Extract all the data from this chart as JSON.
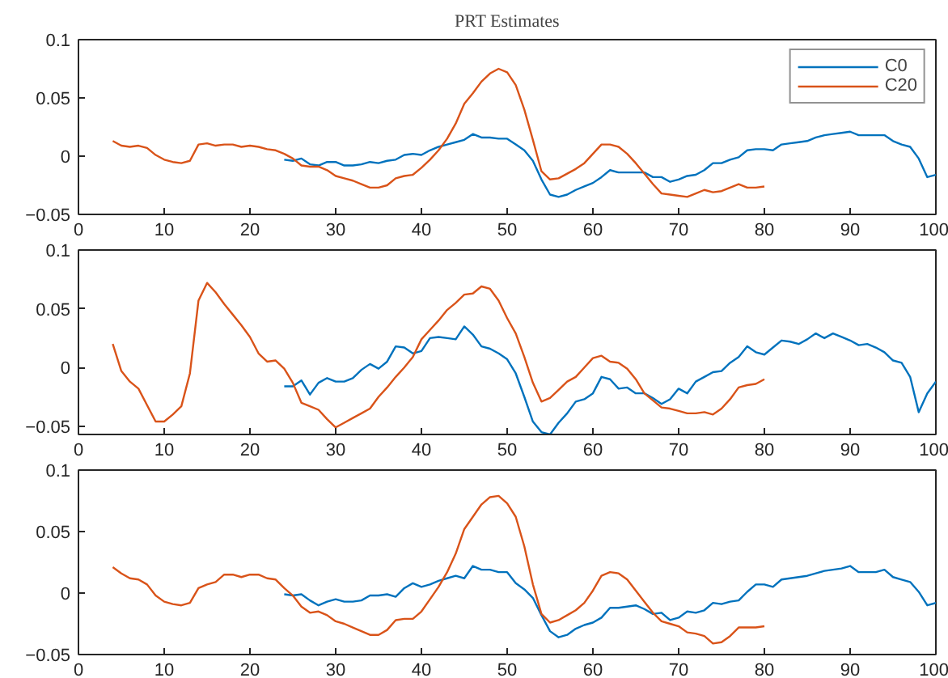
{
  "chart_data": [
    {
      "type": "line",
      "title": "PRT Estimates",
      "xlim": [
        0,
        100
      ],
      "xticks": [
        0,
        10,
        20,
        30,
        40,
        50,
        60,
        70,
        80,
        90,
        100
      ],
      "ylim": [
        -0.05,
        0.1
      ],
      "yticks": [
        -0.05,
        0,
        0.05,
        0.1
      ],
      "grid": false,
      "legend": "top right",
      "series": [
        {
          "name": "C0",
          "color": "#0072bd",
          "x": [
            24,
            25,
            26,
            27,
            28,
            29,
            30,
            31,
            32,
            33,
            34,
            35,
            36,
            37,
            38,
            39,
            40,
            41,
            42,
            43,
            44,
            45,
            46,
            47,
            48,
            49,
            50,
            51,
            52,
            53,
            54,
            55,
            56,
            57,
            58,
            59,
            60,
            61,
            62,
            63,
            64,
            65,
            66,
            67,
            68,
            69,
            70,
            71,
            72,
            73,
            74,
            75,
            76,
            77,
            78,
            79,
            80,
            81,
            82,
            83,
            84,
            85,
            86,
            87,
            88,
            89,
            90,
            91,
            92,
            93,
            94,
            95,
            96,
            97,
            98,
            99,
            100
          ],
          "values": [
            -0.003,
            -0.004,
            -0.002,
            -0.007,
            -0.008,
            -0.005,
            -0.005,
            -0.008,
            -0.008,
            -0.007,
            -0.005,
            -0.006,
            -0.004,
            -0.003,
            0.001,
            0.002,
            0.001,
            0.005,
            0.008,
            0.01,
            0.012,
            0.014,
            0.019,
            0.016,
            0.016,
            0.015,
            0.015,
            0.01,
            0.005,
            -0.004,
            -0.02,
            -0.033,
            -0.035,
            -0.033,
            -0.029,
            -0.026,
            -0.023,
            -0.018,
            -0.012,
            -0.014,
            -0.014,
            -0.014,
            -0.014,
            -0.018,
            -0.018,
            -0.022,
            -0.02,
            -0.017,
            -0.016,
            -0.012,
            -0.006,
            -0.006,
            -0.003,
            -0.001,
            0.005,
            0.006,
            0.006,
            0.005,
            0.01,
            0.011,
            0.012,
            0.013,
            0.016,
            0.018,
            0.019,
            0.02,
            0.021,
            0.018,
            0.018,
            0.018,
            0.018,
            0.013,
            0.01,
            0.008,
            -0.002,
            -0.018,
            -0.016
          ]
        },
        {
          "name": "C20",
          "color": "#d95319",
          "x": [
            4,
            5,
            6,
            7,
            8,
            9,
            10,
            11,
            12,
            13,
            14,
            15,
            16,
            17,
            18,
            19,
            20,
            21,
            22,
            23,
            24,
            25,
            26,
            27,
            28,
            29,
            30,
            31,
            32,
            33,
            34,
            35,
            36,
            37,
            38,
            39,
            40,
            41,
            42,
            43,
            44,
            45,
            46,
            47,
            48,
            49,
            50,
            51,
            52,
            53,
            54,
            55,
            56,
            57,
            58,
            59,
            60,
            61,
            62,
            63,
            64,
            65,
            66,
            67,
            68,
            69,
            70,
            71,
            72,
            73,
            74,
            75,
            76,
            77,
            78,
            79,
            80
          ],
          "values": [
            0.013,
            0.009,
            0.008,
            0.009,
            0.007,
            0.001,
            -0.003,
            -0.005,
            -0.006,
            -0.004,
            0.01,
            0.011,
            0.009,
            0.01,
            0.01,
            0.008,
            0.009,
            0.008,
            0.006,
            0.005,
            0.002,
            -0.002,
            -0.008,
            -0.009,
            -0.009,
            -0.012,
            -0.017,
            -0.019,
            -0.021,
            -0.024,
            -0.027,
            -0.027,
            -0.025,
            -0.019,
            -0.017,
            -0.016,
            -0.01,
            -0.003,
            0.005,
            0.015,
            0.028,
            0.045,
            0.054,
            0.064,
            0.071,
            0.075,
            0.072,
            0.061,
            0.04,
            0.014,
            -0.013,
            -0.02,
            -0.019,
            -0.015,
            -0.011,
            -0.006,
            0.002,
            0.01,
            0.01,
            0.008,
            0.002,
            -0.006,
            -0.015,
            -0.024,
            -0.032,
            -0.033,
            -0.034,
            -0.035,
            -0.032,
            -0.029,
            -0.031,
            -0.03,
            -0.027,
            -0.024,
            -0.027,
            -0.027,
            -0.026
          ]
        }
      ]
    },
    {
      "type": "line",
      "xlim": [
        0,
        100
      ],
      "xticks": [
        0,
        10,
        20,
        30,
        40,
        50,
        60,
        70,
        80,
        90,
        100
      ],
      "ylim": [
        -0.057,
        0.1
      ],
      "yticks": [
        -0.05,
        0,
        0.05,
        0.1
      ],
      "grid": false,
      "legend": false,
      "series": [
        {
          "color": "#0072bd",
          "x": [
            24,
            25,
            26,
            27,
            28,
            29,
            30,
            31,
            32,
            33,
            34,
            35,
            36,
            37,
            38,
            39,
            40,
            41,
            42,
            43,
            44,
            45,
            46,
            47,
            48,
            49,
            50,
            51,
            52,
            53,
            54,
            55,
            56,
            57,
            58,
            59,
            60,
            61,
            62,
            63,
            64,
            65,
            66,
            67,
            68,
            69,
            70,
            71,
            72,
            73,
            74,
            75,
            76,
            77,
            78,
            79,
            80,
            81,
            82,
            83,
            84,
            85,
            86,
            87,
            88,
            89,
            90,
            91,
            92,
            93,
            94,
            95,
            96,
            97,
            98,
            99,
            100
          ],
          "values": [
            -0.016,
            -0.016,
            -0.011,
            -0.023,
            -0.013,
            -0.009,
            -0.012,
            -0.012,
            -0.009,
            -0.002,
            0.003,
            -0.001,
            0.005,
            0.018,
            0.017,
            0.012,
            0.014,
            0.025,
            0.026,
            0.025,
            0.024,
            0.035,
            0.028,
            0.018,
            0.016,
            0.012,
            0.007,
            -0.005,
            -0.025,
            -0.046,
            -0.055,
            -0.057,
            -0.047,
            -0.039,
            -0.029,
            -0.027,
            -0.022,
            -0.008,
            -0.01,
            -0.018,
            -0.017,
            -0.022,
            -0.022,
            -0.026,
            -0.031,
            -0.027,
            -0.018,
            -0.022,
            -0.012,
            -0.008,
            -0.004,
            -0.003,
            0.004,
            0.009,
            0.018,
            0.013,
            0.011,
            0.017,
            0.023,
            0.022,
            0.02,
            0.024,
            0.029,
            0.025,
            0.029,
            0.026,
            0.023,
            0.019,
            0.02,
            0.017,
            0.013,
            0.006,
            0.004,
            -0.008,
            -0.038,
            -0.022,
            -0.012
          ]
        },
        {
          "color": "#d95319",
          "x": [
            4,
            5,
            6,
            7,
            8,
            9,
            10,
            11,
            12,
            13,
            14,
            15,
            16,
            17,
            18,
            19,
            20,
            21,
            22,
            23,
            24,
            25,
            26,
            27,
            28,
            29,
            30,
            31,
            32,
            33,
            34,
            35,
            36,
            37,
            38,
            39,
            40,
            41,
            42,
            43,
            44,
            45,
            46,
            47,
            48,
            49,
            50,
            51,
            52,
            53,
            54,
            55,
            56,
            57,
            58,
            59,
            60,
            61,
            62,
            63,
            64,
            65,
            66,
            67,
            68,
            69,
            70,
            71,
            72,
            73,
            74,
            75,
            76,
            77,
            78,
            79,
            80
          ],
          "values": [
            0.02,
            -0.003,
            -0.012,
            -0.018,
            -0.032,
            -0.046,
            -0.046,
            -0.04,
            -0.033,
            -0.005,
            0.057,
            0.072,
            0.064,
            0.054,
            0.045,
            0.036,
            0.026,
            0.012,
            0.005,
            0.006,
            -0.001,
            -0.013,
            -0.03,
            -0.033,
            -0.036,
            -0.044,
            -0.051,
            -0.047,
            -0.043,
            -0.039,
            -0.035,
            -0.025,
            -0.017,
            -0.008,
            0.0,
            0.009,
            0.024,
            0.032,
            0.04,
            0.049,
            0.055,
            0.062,
            0.063,
            0.069,
            0.067,
            0.057,
            0.042,
            0.029,
            0.009,
            -0.013,
            -0.029,
            -0.026,
            -0.019,
            -0.012,
            -0.008,
            0.0,
            0.008,
            0.01,
            0.005,
            0.004,
            -0.001,
            -0.01,
            -0.022,
            -0.028,
            -0.034,
            -0.035,
            -0.037,
            -0.039,
            -0.039,
            -0.038,
            -0.04,
            -0.035,
            -0.027,
            -0.017,
            -0.015,
            -0.014,
            -0.01
          ]
        }
      ]
    },
    {
      "type": "line",
      "xlim": [
        0,
        100
      ],
      "xticks": [
        0,
        10,
        20,
        30,
        40,
        50,
        60,
        70,
        80,
        90,
        100
      ],
      "ylim": [
        -0.05,
        0.1
      ],
      "yticks": [
        -0.05,
        0,
        0.05,
        0.1
      ],
      "grid": false,
      "legend": false,
      "series": [
        {
          "color": "#0072bd",
          "x": [
            24,
            25,
            26,
            27,
            28,
            29,
            30,
            31,
            32,
            33,
            34,
            35,
            36,
            37,
            38,
            39,
            40,
            41,
            42,
            43,
            44,
            45,
            46,
            47,
            48,
            49,
            50,
            51,
            52,
            53,
            54,
            55,
            56,
            57,
            58,
            59,
            60,
            61,
            62,
            63,
            64,
            65,
            66,
            67,
            68,
            69,
            70,
            71,
            72,
            73,
            74,
            75,
            76,
            77,
            78,
            79,
            80,
            81,
            82,
            83,
            84,
            85,
            86,
            87,
            88,
            89,
            90,
            91,
            92,
            93,
            94,
            95,
            96,
            97,
            98,
            99,
            100
          ],
          "values": [
            -0.001,
            -0.002,
            -0.001,
            -0.006,
            -0.01,
            -0.007,
            -0.005,
            -0.007,
            -0.007,
            -0.006,
            -0.002,
            -0.002,
            -0.001,
            -0.003,
            0.004,
            0.008,
            0.005,
            0.007,
            0.01,
            0.012,
            0.014,
            0.012,
            0.022,
            0.019,
            0.019,
            0.017,
            0.017,
            0.008,
            0.003,
            -0.004,
            -0.018,
            -0.031,
            -0.036,
            -0.034,
            -0.029,
            -0.026,
            -0.024,
            -0.02,
            -0.012,
            -0.012,
            -0.011,
            -0.01,
            -0.013,
            -0.017,
            -0.016,
            -0.022,
            -0.02,
            -0.015,
            -0.016,
            -0.014,
            -0.008,
            -0.009,
            -0.007,
            -0.006,
            0.001,
            0.007,
            0.007,
            0.005,
            0.011,
            0.012,
            0.013,
            0.014,
            0.016,
            0.018,
            0.019,
            0.02,
            0.022,
            0.017,
            0.017,
            0.017,
            0.019,
            0.013,
            0.011,
            0.009,
            0.001,
            -0.01,
            -0.008
          ]
        },
        {
          "color": "#d95319",
          "x": [
            4,
            5,
            6,
            7,
            8,
            9,
            10,
            11,
            12,
            13,
            14,
            15,
            16,
            17,
            18,
            19,
            20,
            21,
            22,
            23,
            24,
            25,
            26,
            27,
            28,
            29,
            30,
            31,
            32,
            33,
            34,
            35,
            36,
            37,
            38,
            39,
            40,
            41,
            42,
            43,
            44,
            45,
            46,
            47,
            48,
            49,
            50,
            51,
            52,
            53,
            54,
            55,
            56,
            57,
            58,
            59,
            60,
            61,
            62,
            63,
            64,
            65,
            66,
            67,
            68,
            69,
            70,
            71,
            72,
            73,
            74,
            75,
            76,
            77,
            78,
            79,
            80
          ],
          "values": [
            0.021,
            0.016,
            0.012,
            0.011,
            0.007,
            -0.002,
            -0.007,
            -0.009,
            -0.01,
            -0.008,
            0.004,
            0.007,
            0.009,
            0.015,
            0.015,
            0.013,
            0.015,
            0.015,
            0.012,
            0.011,
            0.004,
            -0.002,
            -0.011,
            -0.016,
            -0.015,
            -0.018,
            -0.023,
            -0.025,
            -0.028,
            -0.031,
            -0.034,
            -0.034,
            -0.03,
            -0.022,
            -0.021,
            -0.021,
            -0.015,
            -0.005,
            0.005,
            0.017,
            0.032,
            0.052,
            0.062,
            0.072,
            0.078,
            0.079,
            0.073,
            0.062,
            0.038,
            0.007,
            -0.017,
            -0.024,
            -0.022,
            -0.018,
            -0.014,
            -0.008,
            0.002,
            0.014,
            0.017,
            0.016,
            0.011,
            0.002,
            -0.007,
            -0.016,
            -0.023,
            -0.025,
            -0.027,
            -0.032,
            -0.033,
            -0.035,
            -0.041,
            -0.04,
            -0.035,
            -0.028,
            -0.028,
            -0.028,
            -0.027
          ]
        }
      ]
    }
  ]
}
